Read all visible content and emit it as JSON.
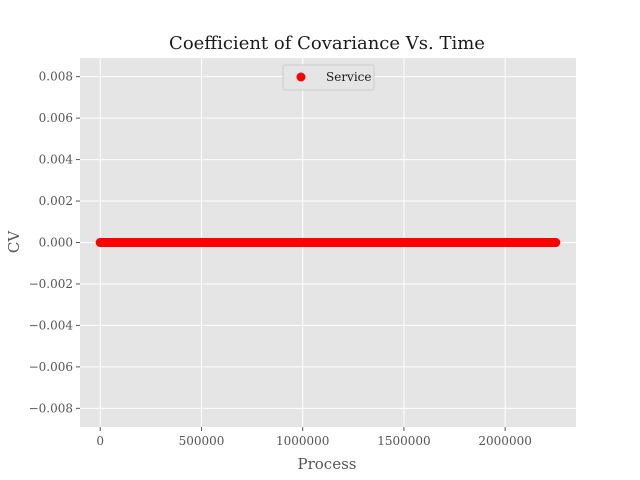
{
  "chart_data": {
    "type": "scatter",
    "title": "Coefficient of Covariance Vs. Time",
    "xlabel": "Process",
    "ylabel": "CV",
    "xlim": [
      -100000,
      2350000
    ],
    "ylim": [
      -0.0089,
      0.0089
    ],
    "xticks": [
      0,
      500000,
      1000000,
      1500000,
      2000000
    ],
    "xtick_labels": [
      "0",
      "500000",
      "1000000",
      "1500000",
      "2000000"
    ],
    "yticks": [
      -0.008,
      -0.006,
      -0.004,
      -0.002,
      0.0,
      0.002,
      0.004,
      0.006,
      0.008
    ],
    "ytick_labels": [
      "−0.008",
      "−0.006",
      "−0.004",
      "−0.002",
      "0.000",
      "0.002",
      "0.004",
      "0.006",
      "0.008"
    ],
    "grid": true,
    "legend_position": "top-center",
    "background_color": "#e5e5e5",
    "series": [
      {
        "name": "Service",
        "color": "#ff0000",
        "x_range": [
          0,
          2250000
        ],
        "y_value": 0.0,
        "x": [
          0,
          125000,
          250000,
          375000,
          500000,
          625000,
          750000,
          875000,
          1000000,
          1125000,
          1250000,
          1375000,
          1500000,
          1625000,
          1750000,
          1875000,
          2000000,
          2125000,
          2250000
        ],
        "y": [
          0,
          0,
          0,
          0,
          0,
          0,
          0,
          0,
          0,
          0,
          0,
          0,
          0,
          0,
          0,
          0,
          0,
          0,
          0
        ]
      }
    ]
  }
}
